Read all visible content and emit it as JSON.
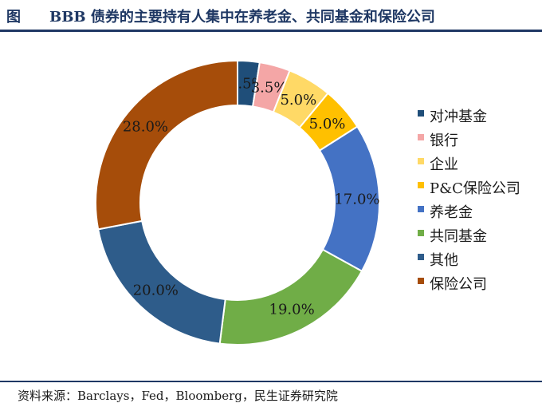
{
  "title": {
    "prefix": "图",
    "text": "BBB 债券的主要持有人集中在养老金、共同基金和保险公司"
  },
  "source": "资料来源：Barclays，Fed，Bloomberg，民生证券研究院",
  "chart_data": {
    "type": "pie",
    "donut": true,
    "legend_position": "right",
    "slices": [
      {
        "name": "对冲基金",
        "value": 2.5,
        "label": "2.5%",
        "color": "#1f4e79"
      },
      {
        "name": "银行",
        "value": 3.5,
        "label": "3.5%",
        "color": "#f4a6a6"
      },
      {
        "name": "企业",
        "value": 5.0,
        "label": "5.0%",
        "color": "#ffd966"
      },
      {
        "name": "P&C保险公司",
        "value": 5.0,
        "label": "5.0%",
        "color": "#ffc000"
      },
      {
        "name": "养老金",
        "value": 17.0,
        "label": "17.0%",
        "color": "#4472c4"
      },
      {
        "name": "共同基金",
        "value": 19.0,
        "label": "19.0%",
        "color": "#70ad47"
      },
      {
        "name": "其他",
        "value": 20.0,
        "label": "20.0%",
        "color": "#2e5c8a"
      },
      {
        "name": "保险公司",
        "value": 28.0,
        "label": "28.0%",
        "color": "#a64d0a"
      }
    ]
  }
}
